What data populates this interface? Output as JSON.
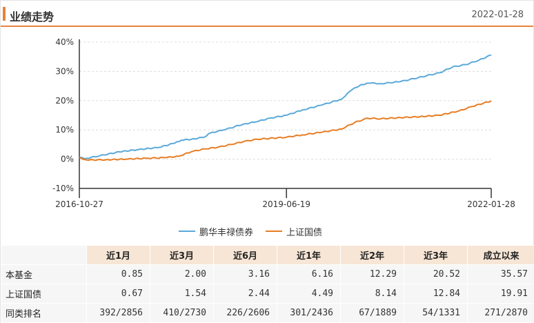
{
  "header": {
    "title": "业绩走势",
    "date": "2022-01-28"
  },
  "colors": {
    "accent": "#e8823a",
    "fund_line": "#5ba9d9",
    "index_line": "#e87d23"
  },
  "chart_data": {
    "type": "line",
    "x_start": "2016-10-27",
    "x_end": "2022-01-28",
    "x_ticks": [
      "2016-10-27",
      "2019-06-19",
      "2022-01-28"
    ],
    "y_ticks": [
      "40%",
      "30%",
      "20%",
      "10%",
      "0%",
      "-10%"
    ],
    "ylim": [
      -10,
      40
    ],
    "y_unit": "%",
    "grid": true,
    "legend_position": "bottom",
    "series": [
      {
        "name": "鹏华丰禄债券",
        "color": "#5ba9d9",
        "points": [
          [
            "2016-10-27",
            0.5
          ],
          [
            "2016-12-01",
            0.3
          ],
          [
            "2017-02-01",
            1.2
          ],
          [
            "2017-05-01",
            2.5
          ],
          [
            "2017-08-01",
            3.3
          ],
          [
            "2017-11-01",
            4.0
          ],
          [
            "2018-01-15",
            5.5
          ],
          [
            "2018-02-15",
            6.5
          ],
          [
            "2018-04-01",
            6.8
          ],
          [
            "2018-06-01",
            7.5
          ],
          [
            "2018-07-01",
            9.0
          ],
          [
            "2018-09-01",
            10.0
          ],
          [
            "2018-12-01",
            12.0
          ],
          [
            "2019-02-01",
            12.8
          ],
          [
            "2019-04-01",
            14.0
          ],
          [
            "2019-06-19",
            15.0
          ],
          [
            "2019-09-01",
            16.8
          ],
          [
            "2019-12-01",
            18.5
          ],
          [
            "2020-03-01",
            20.5
          ],
          [
            "2020-04-15",
            23.5
          ],
          [
            "2020-06-01",
            25.5
          ],
          [
            "2020-07-15",
            26.0
          ],
          [
            "2020-09-01",
            25.8
          ],
          [
            "2020-12-01",
            26.5
          ],
          [
            "2021-02-01",
            27.5
          ],
          [
            "2021-04-01",
            28.5
          ],
          [
            "2021-06-01",
            29.5
          ],
          [
            "2021-08-01",
            31.5
          ],
          [
            "2021-10-01",
            32.3
          ],
          [
            "2021-12-01",
            33.8
          ],
          [
            "2022-01-28",
            35.6
          ]
        ]
      },
      {
        "name": "上证国债",
        "color": "#e87d23",
        "points": [
          [
            "2016-10-27",
            0.5
          ],
          [
            "2016-12-01",
            -0.3
          ],
          [
            "2017-03-01",
            -0.2
          ],
          [
            "2017-06-01",
            0.0
          ],
          [
            "2017-09-01",
            0.3
          ],
          [
            "2017-12-01",
            0.5
          ],
          [
            "2018-02-01",
            1.0
          ],
          [
            "2018-04-01",
            2.5
          ],
          [
            "2018-06-01",
            3.5
          ],
          [
            "2018-08-01",
            4.0
          ],
          [
            "2018-10-01",
            5.0
          ],
          [
            "2018-12-01",
            6.0
          ],
          [
            "2019-02-01",
            6.8
          ],
          [
            "2019-06-19",
            7.5
          ],
          [
            "2019-09-01",
            8.3
          ],
          [
            "2019-12-01",
            9.2
          ],
          [
            "2020-03-01",
            10.3
          ],
          [
            "2020-05-01",
            12.5
          ],
          [
            "2020-07-01",
            14.0
          ],
          [
            "2020-09-01",
            13.8
          ],
          [
            "2020-12-01",
            14.2
          ],
          [
            "2021-03-01",
            14.5
          ],
          [
            "2021-06-01",
            15.0
          ],
          [
            "2021-09-01",
            16.5
          ],
          [
            "2021-11-01",
            18.0
          ],
          [
            "2022-01-28",
            19.9
          ]
        ]
      }
    ]
  },
  "legend": {
    "fund": "鹏华丰禄债券",
    "index": "上证国债"
  },
  "table": {
    "columns": [
      "近1月",
      "近3月",
      "近6月",
      "近1年",
      "近2年",
      "近3年",
      "成立以来"
    ],
    "rows": [
      {
        "label": "本基金",
        "values": [
          "0.85",
          "2.00",
          "3.16",
          "6.16",
          "12.29",
          "20.52",
          "35.57"
        ]
      },
      {
        "label": "上证国债",
        "values": [
          "0.67",
          "1.54",
          "2.44",
          "4.49",
          "8.14",
          "12.84",
          "19.91"
        ]
      },
      {
        "label": "同类排名",
        "values": [
          "392/2856",
          "410/2730",
          "226/2606",
          "301/2436",
          "67/1889",
          "54/1331",
          "271/2870"
        ]
      }
    ]
  }
}
